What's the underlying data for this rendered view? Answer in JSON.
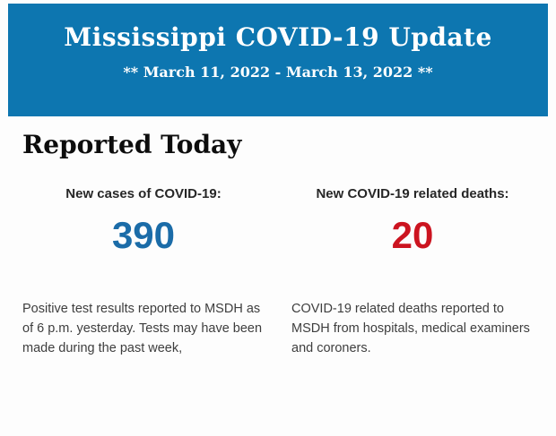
{
  "header": {
    "title": "Mississippi COVID-19 Update",
    "subtitle": "** March 11, 2022 - March 13, 2022 **",
    "bg_color": "#0d76b0",
    "text_color": "#ffffff"
  },
  "report": {
    "heading": "Reported Today",
    "cases": {
      "label": "New cases of COVID-19:",
      "value": "390",
      "value_color": "#1b6ca8",
      "description": "Positive test results reported to MSDH as of 6 p.m. yesterday. Tests may have been made during the past week,"
    },
    "deaths": {
      "label": "New COVID-19 related deaths:",
      "value": "20",
      "value_color": "#cc1420",
      "description": "COVID-19 related deaths reported to MSDH from hospitals, medical examiners and coroners."
    }
  }
}
